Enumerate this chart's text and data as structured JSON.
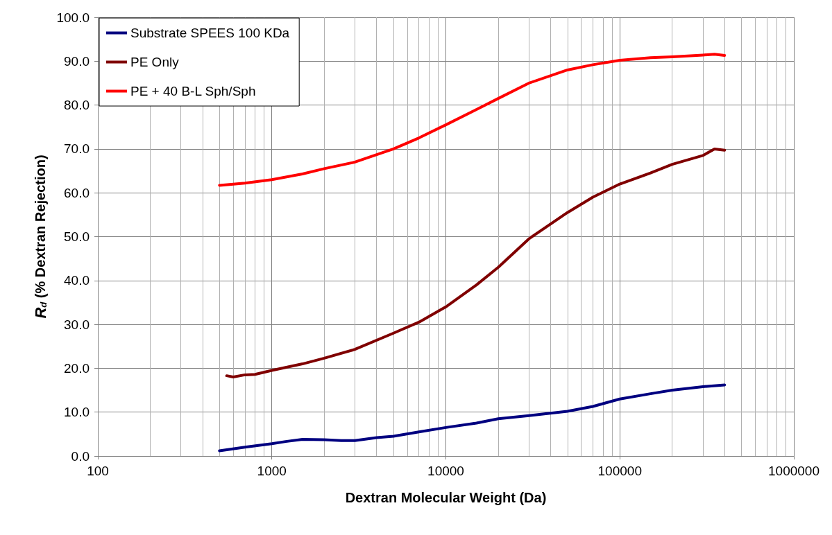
{
  "chart_data": {
    "type": "line",
    "xlabel": "Dextran Molecular Weight (Da)",
    "ylabel": "R$_{d}$ (% Dextran Rejection)",
    "log": "x",
    "grid": true,
    "legend": "top left",
    "marker": "none",
    "line_style": "solid",
    "xlim": [
      100,
      1000000
    ],
    "xticks": [
      100,
      1000,
      10000,
      100000,
      1000000
    ],
    "ylim": [
      0,
      100
    ],
    "yticks": [
      {
        "value": 0,
        "label": "0.0"
      },
      {
        "value": 10,
        "label": "10.0"
      },
      {
        "value": 20,
        "label": "20.0"
      },
      {
        "value": 30,
        "label": "30.0"
      },
      {
        "value": 40,
        "label": "40.0"
      },
      {
        "value": 50,
        "label": "50.0"
      },
      {
        "value": 60,
        "label": "60.0"
      },
      {
        "value": 70,
        "label": "70.0"
      },
      {
        "value": 80,
        "label": "80.0"
      },
      {
        "value": 90,
        "label": "90.0"
      },
      {
        "value": 100,
        "label": "100.0"
      }
    ],
    "series": [
      {
        "name": "Substrate SPEES 100 KDa",
        "color": "#000080",
        "x": [
          500,
          700,
          1000,
          1200,
          1500,
          2000,
          2500,
          3000,
          4000,
          5000,
          7000,
          10000,
          15000,
          20000,
          30000,
          50000,
          70000,
          100000,
          150000,
          200000,
          300000,
          400000
        ],
        "values": [
          1.2,
          2.0,
          2.8,
          3.3,
          3.8,
          3.7,
          3.5,
          3.5,
          4.2,
          4.5,
          5.5,
          6.5,
          7.5,
          8.5,
          9.2,
          10.2,
          11.3,
          13.0,
          14.2,
          15.0,
          15.8,
          16.2
        ]
      },
      {
        "name": "PE Only",
        "color": "#800000",
        "x": [
          550,
          600,
          700,
          800,
          1000,
          1500,
          2000,
          3000,
          5000,
          7000,
          10000,
          15000,
          20000,
          30000,
          50000,
          70000,
          100000,
          150000,
          200000,
          300000,
          350000,
          400000
        ],
        "values": [
          18.3,
          18.0,
          18.5,
          18.6,
          19.5,
          21.0,
          22.3,
          24.3,
          28.0,
          30.5,
          34.0,
          39.0,
          43.0,
          49.5,
          55.5,
          59.0,
          62.0,
          64.5,
          66.5,
          68.5,
          70.0,
          69.7
        ]
      },
      {
        "name": "PE + 40 B-L Sph/Sph",
        "color": "#ff0000",
        "x": [
          500,
          700,
          1000,
          1500,
          2000,
          3000,
          5000,
          7000,
          10000,
          15000,
          20000,
          30000,
          50000,
          70000,
          100000,
          150000,
          200000,
          300000,
          350000,
          400000
        ],
        "values": [
          61.7,
          62.2,
          63.0,
          64.3,
          65.5,
          67.0,
          70.0,
          72.5,
          75.5,
          79.0,
          81.5,
          85.0,
          88.0,
          89.2,
          90.2,
          90.8,
          91.0,
          91.4,
          91.6,
          91.3
        ]
      }
    ]
  }
}
